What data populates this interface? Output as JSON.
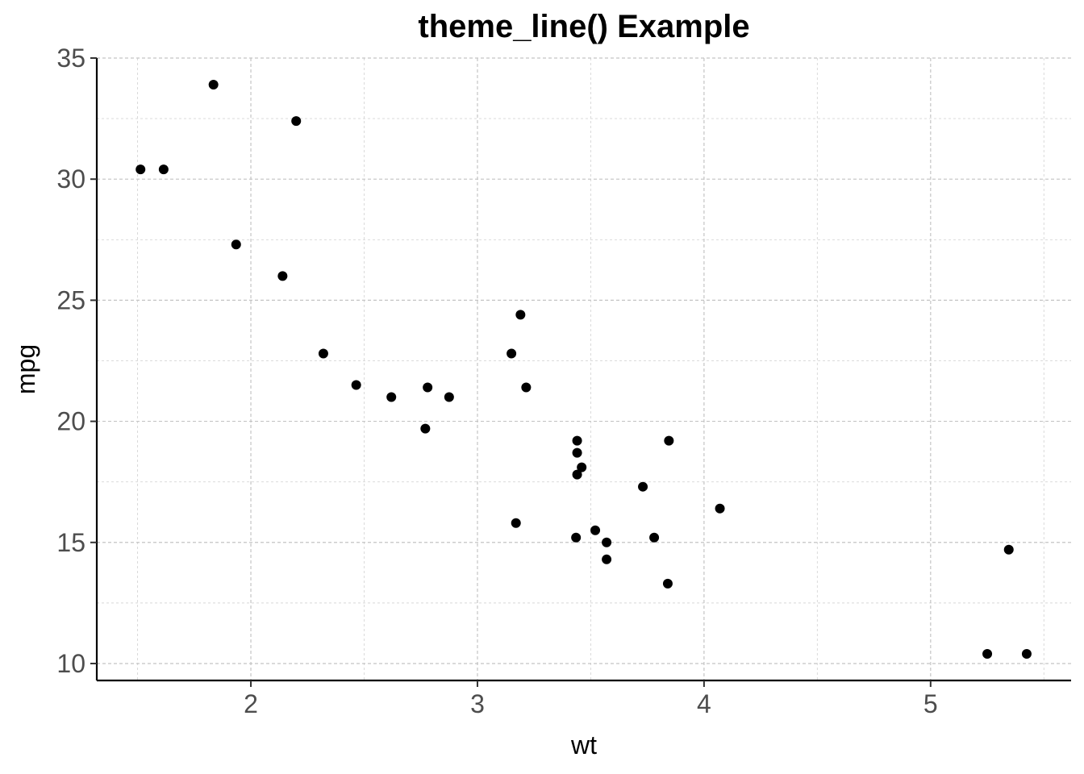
{
  "chart_data": {
    "type": "scatter",
    "title": "theme_line() Example",
    "xlabel": "wt",
    "ylabel": "mpg",
    "xlim": [
      1.32,
      5.62
    ],
    "ylim": [
      9.3,
      35.0
    ],
    "x_ticks": [
      2,
      3,
      4,
      5
    ],
    "y_ticks": [
      10,
      15,
      20,
      25,
      30,
      35
    ],
    "x_minor": [
      1.5,
      2.5,
      3.5,
      4.5,
      5.5
    ],
    "y_minor": [
      12.5,
      17.5,
      22.5,
      27.5,
      32.5
    ],
    "grid": true,
    "legend": "none",
    "point_color": "#000000",
    "points": [
      {
        "x": 2.62,
        "y": 21.0
      },
      {
        "x": 2.875,
        "y": 21.0
      },
      {
        "x": 2.32,
        "y": 22.8
      },
      {
        "x": 3.215,
        "y": 21.4
      },
      {
        "x": 3.44,
        "y": 18.7
      },
      {
        "x": 3.46,
        "y": 18.1
      },
      {
        "x": 3.57,
        "y": 14.3
      },
      {
        "x": 3.19,
        "y": 24.4
      },
      {
        "x": 3.15,
        "y": 22.8
      },
      {
        "x": 3.44,
        "y": 19.2
      },
      {
        "x": 3.44,
        "y": 17.8
      },
      {
        "x": 4.07,
        "y": 16.4
      },
      {
        "x": 3.73,
        "y": 17.3
      },
      {
        "x": 3.78,
        "y": 15.2
      },
      {
        "x": 5.25,
        "y": 10.4
      },
      {
        "x": 5.424,
        "y": 10.4
      },
      {
        "x": 5.345,
        "y": 14.7
      },
      {
        "x": 2.2,
        "y": 32.4
      },
      {
        "x": 1.615,
        "y": 30.4
      },
      {
        "x": 1.835,
        "y": 33.9
      },
      {
        "x": 2.465,
        "y": 21.5
      },
      {
        "x": 3.52,
        "y": 15.5
      },
      {
        "x": 3.435,
        "y": 15.2
      },
      {
        "x": 3.84,
        "y": 13.3
      },
      {
        "x": 3.845,
        "y": 19.2
      },
      {
        "x": 1.935,
        "y": 27.3
      },
      {
        "x": 2.14,
        "y": 26.0
      },
      {
        "x": 1.513,
        "y": 30.4
      },
      {
        "x": 3.17,
        "y": 15.8
      },
      {
        "x": 2.77,
        "y": 19.7
      },
      {
        "x": 3.57,
        "y": 15.0
      },
      {
        "x": 2.78,
        "y": 21.4
      }
    ]
  }
}
